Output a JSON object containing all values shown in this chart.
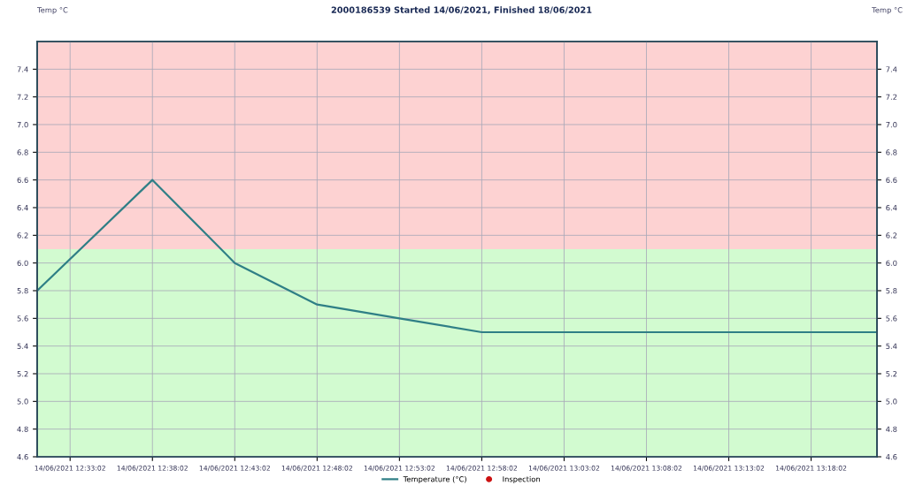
{
  "chart_data": {
    "type": "line",
    "title": "2000186539 Started 14/06/2021, Finished 18/06/2021",
    "ylabel": "Temp °C",
    "y2label": "Temp °C",
    "series": [
      {
        "name": "Temperature (°C)",
        "color": "#2f7f86",
        "x": [
          "2021-06-14T12:31",
          "2021-06-14T12:38",
          "2021-06-14T12:43",
          "2021-06-14T12:48",
          "2021-06-14T12:53",
          "2021-06-14T12:58",
          "2021-06-14T13:22"
        ],
        "values": [
          5.8,
          6.6,
          6.0,
          5.7,
          5.6,
          5.5,
          5.5
        ]
      },
      {
        "name": "Inspection",
        "color": "#cc1111",
        "type": "scatter",
        "marker": "circle"
      }
    ],
    "xlim": [
      "2021-06-14T12:31",
      "2021-06-14T13:22"
    ],
    "xticks": [
      {
        "value": "2021-06-14T12:33",
        "label": "14/06/2021 12:33:02"
      },
      {
        "value": "2021-06-14T12:38",
        "label": "14/06/2021 12:38:02"
      },
      {
        "value": "2021-06-14T12:43",
        "label": "14/06/2021 12:43:02"
      },
      {
        "value": "2021-06-14T12:48",
        "label": "14/06/2021 12:48:02"
      },
      {
        "value": "2021-06-14T12:53",
        "label": "14/06/2021 12:53:02"
      },
      {
        "value": "2021-06-14T12:58",
        "label": "14/06/2021 12:58:02"
      },
      {
        "value": "2021-06-14T13:03",
        "label": "14/06/2021 13:03:02"
      },
      {
        "value": "2021-06-14T13:08",
        "label": "14/06/2021 13:08:02"
      },
      {
        "value": "2021-06-14T13:13",
        "label": "14/06/2021 13:13:02"
      },
      {
        "value": "2021-06-14T13:18",
        "label": "14/06/2021 13:18:02"
      }
    ],
    "ylim": [
      4.6,
      7.6
    ],
    "yticks": [
      4.6,
      4.8,
      {
        "value": 5,
        "label": "5.0"
      },
      5.2,
      5.4,
      5.6,
      5.8,
      {
        "value": 6,
        "label": "6.0"
      },
      6.2,
      6.4,
      6.6,
      6.8,
      {
        "value": 7,
        "label": "7.0"
      },
      7.2,
      7.4
    ],
    "y2lim": [
      4.6,
      7.6
    ],
    "y2ticks": [
      4.6,
      4.8,
      {
        "value": 5,
        "label": "5.0"
      },
      5.2,
      5.4,
      5.6,
      5.8,
      {
        "value": 6,
        "label": "6.0"
      },
      6.2,
      6.4,
      6.6,
      6.8,
      {
        "value": 7,
        "label": "7.0"
      },
      7.2,
      7.4
    ],
    "bands": [
      {
        "axis": "y",
        "from": 4.6,
        "to": 6.1,
        "color": "#d2fbd0"
      },
      {
        "axis": "y",
        "from": 6.1,
        "to": 7.6,
        "color": "#fdd2d2"
      }
    ],
    "grid": true,
    "legend": "bottom",
    "line_style": "solid"
  }
}
